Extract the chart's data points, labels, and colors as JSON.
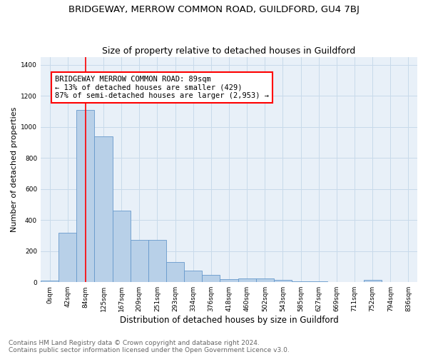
{
  "title": "BRIDGEWAY, MERROW COMMON ROAD, GUILDFORD, GU4 7BJ",
  "subtitle": "Size of property relative to detached houses in Guildford",
  "xlabel": "Distribution of detached houses by size in Guildford",
  "ylabel": "Number of detached properties",
  "footer_line1": "Contains HM Land Registry data © Crown copyright and database right 2024.",
  "footer_line2": "Contains public sector information licensed under the Open Government Licence v3.0.",
  "annotation_line1": "BRIDGEWAY MERROW COMMON ROAD: 89sqm",
  "annotation_line2": "← 13% of detached houses are smaller (429)",
  "annotation_line3": "87% of semi-detached houses are larger (2,953) →",
  "bar_labels": [
    "0sqm",
    "42sqm",
    "84sqm",
    "125sqm",
    "167sqm",
    "209sqm",
    "251sqm",
    "293sqm",
    "334sqm",
    "376sqm",
    "418sqm",
    "460sqm",
    "502sqm",
    "543sqm",
    "585sqm",
    "627sqm",
    "669sqm",
    "711sqm",
    "752sqm",
    "794sqm",
    "836sqm"
  ],
  "bar_values": [
    10,
    320,
    1110,
    940,
    460,
    270,
    270,
    130,
    75,
    45,
    20,
    25,
    25,
    15,
    5,
    5,
    2,
    2,
    15,
    2,
    2
  ],
  "bar_color": "#b8d0e8",
  "bar_edge_color": "#6699cc",
  "grid_color": "#c8daea",
  "background_color": "#e8f0f8",
  "red_line_x": 2,
  "ylim": [
    0,
    1450
  ],
  "yticks": [
    0,
    200,
    400,
    600,
    800,
    1000,
    1200,
    1400
  ],
  "title_fontsize": 9.5,
  "subtitle_fontsize": 9,
  "ylabel_fontsize": 8,
  "xlabel_fontsize": 8.5,
  "tick_fontsize": 6.5,
  "annotation_fontsize": 7.5,
  "footer_fontsize": 6.5
}
